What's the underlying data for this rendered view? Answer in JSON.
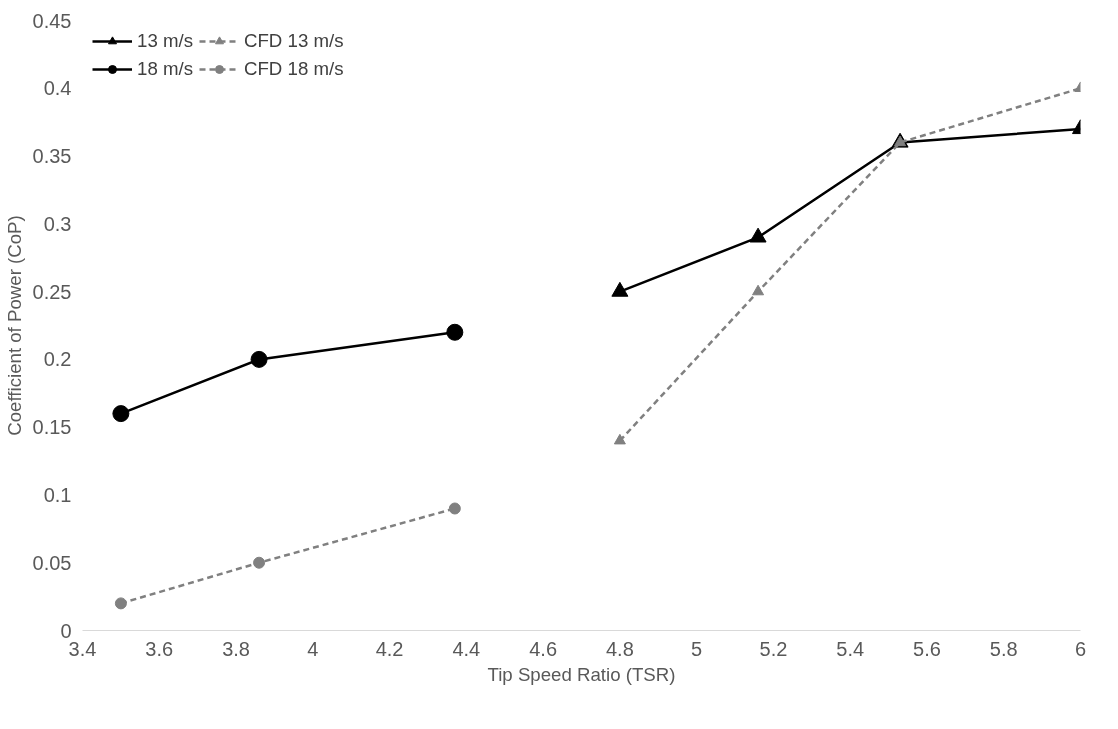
{
  "chart_data": {
    "type": "line",
    "xlabel": "Tip Speed Ratio (TSR)",
    "ylabel": "Coefficient of Power (CoP)",
    "xlim": [
      3.4,
      6.0
    ],
    "xticks": [
      3.4,
      3.6,
      3.8,
      {
        "value": 4.0,
        "label": "4"
      },
      4.2,
      4.4,
      4.6,
      4.8,
      {
        "value": 5.0,
        "label": "5"
      },
      5.2,
      5.4,
      5.6,
      5.8,
      {
        "value": 6.0,
        "label": "6"
      }
    ],
    "ylim": [
      0,
      0.45
    ],
    "yticks": [
      {
        "value": 0,
        "label": "0"
      },
      0.05,
      0.1,
      0.15,
      0.2,
      0.25,
      0.3,
      0.35,
      0.4,
      0.45
    ],
    "grid": false,
    "legend": "top left",
    "series": [
      {
        "name": "13 m/s",
        "color": "#000000",
        "marker": "triangle",
        "line_style": "solid",
        "x": [
          4.8,
          5.16,
          5.53,
          6.0
        ],
        "values": [
          0.25,
          0.29,
          0.36,
          0.37
        ]
      },
      {
        "name": "CFD 13 m/s",
        "color": "#808080",
        "marker": "triangle",
        "line_style": "dashed",
        "x": [
          4.8,
          5.16,
          5.53,
          6.0
        ],
        "values": [
          0.14,
          0.25,
          0.36,
          0.4
        ]
      },
      {
        "name": "18 m/s",
        "color": "#000000",
        "marker": "circle",
        "line_style": "solid",
        "x": [
          3.5,
          3.86,
          4.37
        ],
        "values": [
          0.16,
          0.2,
          0.22
        ]
      },
      {
        "name": "CFD 18 m/s",
        "color": "#808080",
        "marker": "circle",
        "line_style": "dashed",
        "x": [
          3.5,
          3.86,
          4.37
        ],
        "values": [
          0.02,
          0.05,
          0.09
        ]
      }
    ]
  }
}
